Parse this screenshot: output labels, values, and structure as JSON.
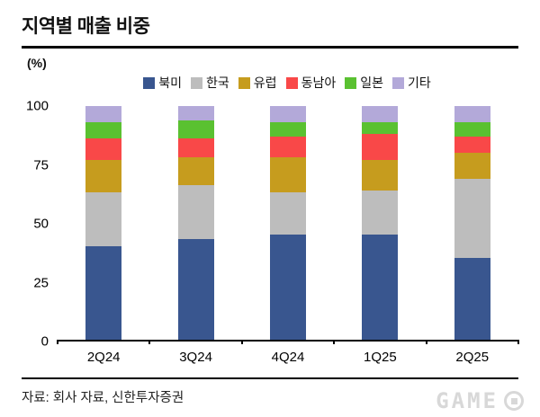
{
  "header": {
    "title": "지역별 매출 비중"
  },
  "footer": {
    "source": "자료: 회사 자료, 신한투자증권"
  },
  "watermark": {
    "text": "GAME"
  },
  "chart_data": {
    "type": "bar",
    "stacked": true,
    "title": "지역별 매출 비중",
    "unit_label": "(%)",
    "xlabel": "",
    "ylabel": "(%)",
    "categories": [
      "2Q24",
      "3Q24",
      "4Q24",
      "1Q25",
      "2Q25"
    ],
    "series": [
      {
        "name": "북미",
        "color": "#39568f",
        "values": [
          40,
          43,
          45,
          45,
          35
        ]
      },
      {
        "name": "한국",
        "color": "#bdbdbd",
        "values": [
          23,
          23,
          18,
          19,
          34
        ]
      },
      {
        "name": "유럽",
        "color": "#c69c1e",
        "values": [
          14,
          12,
          15,
          13,
          11
        ]
      },
      {
        "name": "동남아",
        "color": "#f94848",
        "values": [
          9,
          8,
          9,
          11,
          7
        ]
      },
      {
        "name": "일본",
        "color": "#5ac131",
        "values": [
          7,
          8,
          6,
          5,
          6
        ]
      },
      {
        "name": "기타",
        "color": "#b3a9d9",
        "values": [
          7,
          6,
          7,
          7,
          7
        ]
      }
    ],
    "ylim": [
      0,
      100
    ],
    "yticks": [
      0,
      25,
      50,
      75,
      100
    ],
    "legend_position": "top",
    "grid": false
  }
}
